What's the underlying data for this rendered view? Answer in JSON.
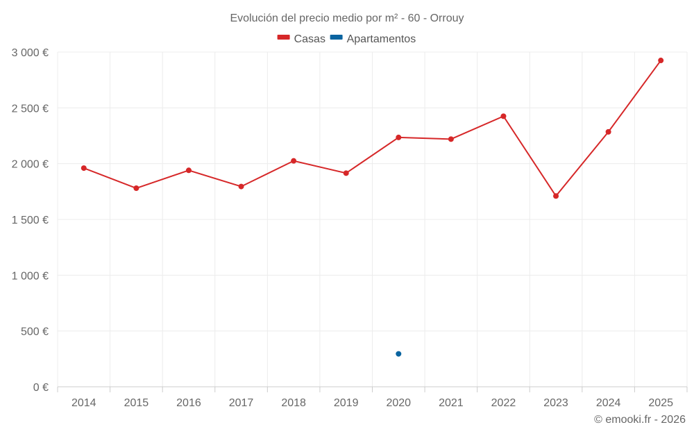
{
  "chart_data": {
    "type": "line",
    "title": "Evolución del precio medio por m² - 60 - Orrouy",
    "categories": [
      "2014",
      "2015",
      "2016",
      "2017",
      "2018",
      "2019",
      "2020",
      "2021",
      "2022",
      "2023",
      "2024",
      "2025"
    ],
    "ylim": [
      0,
      3000
    ],
    "yticks": [
      0,
      500,
      1000,
      1500,
      2000,
      2500,
      3000
    ],
    "ytick_labels": [
      "0 €",
      "500 €",
      "1 000 €",
      "1 500 €",
      "2 000 €",
      "2 500 €",
      "3 000 €"
    ],
    "grid": true,
    "legend_position": "top-center",
    "series": [
      {
        "name": "Casas",
        "color": "#d62728",
        "values": [
          1960,
          1780,
          1940,
          1795,
          2025,
          1915,
          2235,
          2220,
          2425,
          1710,
          2285,
          2925
        ]
      },
      {
        "name": "Apartamentos",
        "color": "#0a64a0",
        "values": [
          null,
          null,
          null,
          null,
          null,
          null,
          295,
          null,
          null,
          null,
          null,
          null
        ]
      }
    ],
    "credit": "© emooki.fr - 2026"
  }
}
